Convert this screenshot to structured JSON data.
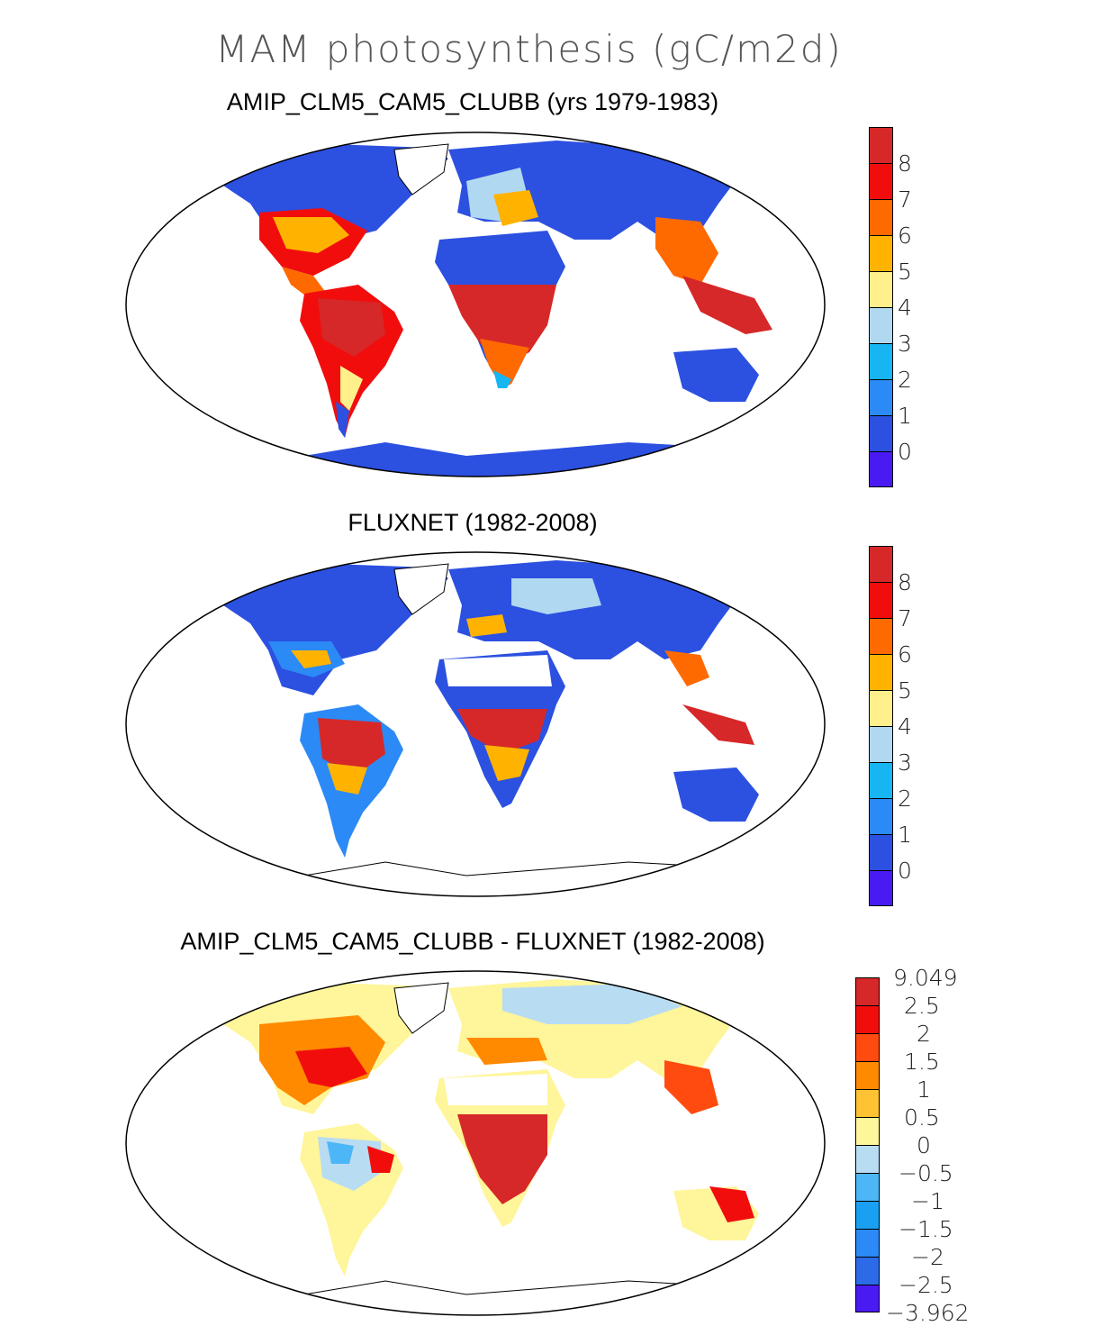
{
  "title": "MAM photosynthesis (gC/m2d)",
  "panels": [
    {
      "title": "AMIP_CLM5_CAM5_CLUBB (yrs 1979-1983)",
      "colorbar": {
        "labels": [
          "8",
          "7",
          "6",
          "5",
          "4",
          "3",
          "2",
          "1",
          "0"
        ],
        "colors": [
          "#d62828",
          "#f20d0d",
          "#ff6a00",
          "#ffb300",
          "#fff08c",
          "#b0d8f0",
          "#17b6f2",
          "#2b8af5",
          "#2c50e0",
          "#4a1af2"
        ]
      }
    },
    {
      "title": "FLUXNET (1982-2008)",
      "colorbar": {
        "labels": [
          "8",
          "7",
          "6",
          "5",
          "4",
          "3",
          "2",
          "1",
          "0"
        ],
        "colors": [
          "#d62828",
          "#f20d0d",
          "#ff6a00",
          "#ffb300",
          "#fff08c",
          "#b0d8f0",
          "#17b6f2",
          "#2b8af5",
          "#2c50e0",
          "#4a1af2"
        ]
      }
    },
    {
      "title": "AMIP_CLM5_CAM5_CLUBB - FLUXNET (1982-2008)",
      "colorbar": {
        "labels": [
          "9.049",
          "2.5",
          "2",
          "1.5",
          "1",
          "0.5",
          "0",
          "−0.5",
          "−1",
          "−1.5",
          "−2",
          "−2.5",
          "−3.962"
        ],
        "colors": [
          "#d62828",
          "#f20d0d",
          "#ff4a10",
          "#ff8a00",
          "#ffc233",
          "#fff59a",
          "#b8dcf2",
          "#4db6f7",
          "#1aa0f2",
          "#2b8af5",
          "#2c6ae8",
          "#2c45e0",
          "#4a1af2"
        ]
      }
    }
  ]
}
